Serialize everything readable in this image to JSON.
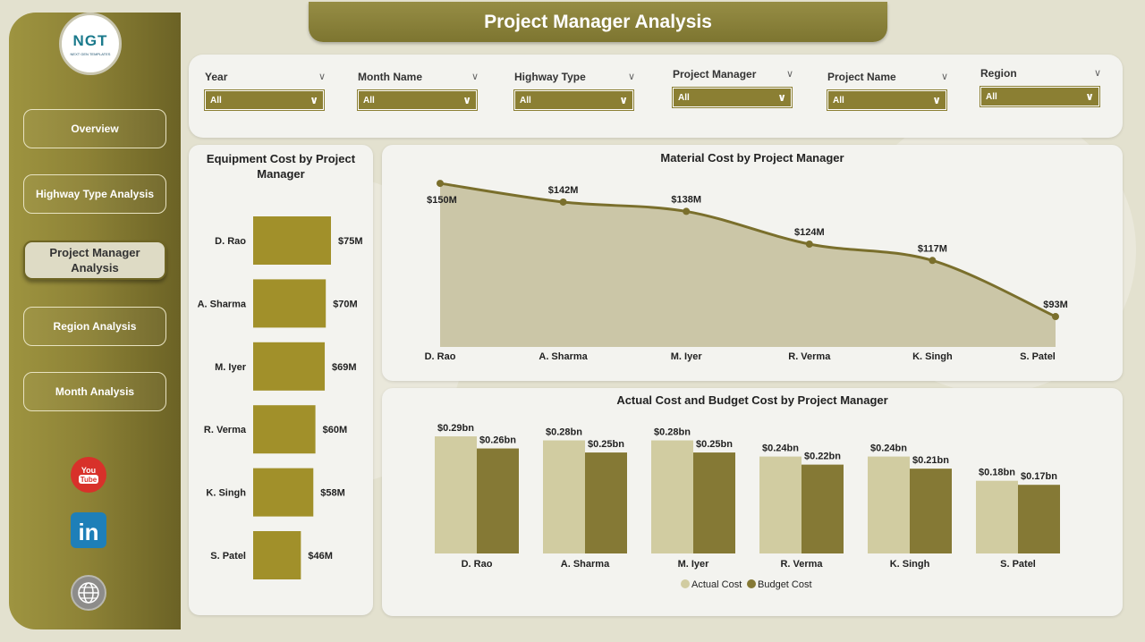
{
  "header": {
    "title": "Project Manager Analysis"
  },
  "logo": {
    "text": "NGT",
    "subtext": "NEXT GEN TEMPLATES"
  },
  "sidebar": {
    "items": [
      {
        "label": "Overview",
        "active": false
      },
      {
        "label": "Highway Type Analysis",
        "active": false
      },
      {
        "label": "Project Manager Analysis",
        "active": true
      },
      {
        "label": "Region Analysis",
        "active": false
      },
      {
        "label": "Month Analysis",
        "active": false
      }
    ],
    "social": [
      {
        "icon": "youtube-icon",
        "label": "You Tube"
      },
      {
        "icon": "linkedin-icon",
        "label": "in"
      },
      {
        "icon": "globe-icon"
      }
    ]
  },
  "filters": [
    {
      "label": "Year",
      "value": "All"
    },
    {
      "label": "Month Name",
      "value": "All"
    },
    {
      "label": "Highway Type",
      "value": "All"
    },
    {
      "label": "Project Manager",
      "value": "All"
    },
    {
      "label": "Project Name",
      "value": "All"
    },
    {
      "label": "Region",
      "value": "All"
    }
  ],
  "colors": {
    "olive": "#8b7f33",
    "bar_gold": "#a1902a",
    "area_fill": "#cbc6a7",
    "line": "#7a6f2c",
    "actual": "#d1cca1",
    "budget": "#857935"
  },
  "chart_data": [
    {
      "type": "bar",
      "orientation": "horizontal",
      "title": "Equipment Cost by Project Manager",
      "categories": [
        "D. Rao",
        "A. Sharma",
        "M. Iyer",
        "R. Verma",
        "K. Singh",
        "S. Patel"
      ],
      "values": [
        75,
        70,
        69,
        60,
        58,
        46
      ],
      "labels": [
        "$75M",
        "$70M",
        "$69M",
        "$60M",
        "$58M",
        "$46M"
      ],
      "unit": "$M"
    },
    {
      "type": "area",
      "title": "Material Cost by Project Manager",
      "categories": [
        "D. Rao",
        "A. Sharma",
        "M. Iyer",
        "R. Verma",
        "K. Singh",
        "S. Patel"
      ],
      "values": [
        150,
        142,
        138,
        124,
        117,
        93
      ],
      "labels": [
        "$150M",
        "$142M",
        "$138M",
        "$124M",
        "$117M",
        "$93M"
      ],
      "unit": "$M",
      "ylim": [
        80,
        155
      ]
    },
    {
      "type": "bar",
      "title": "Actual Cost and Budget Cost by Project Manager",
      "categories": [
        "D. Rao",
        "A. Sharma",
        "M. Iyer",
        "R. Verma",
        "K. Singh",
        "S. Patel"
      ],
      "series": [
        {
          "name": "Actual Cost",
          "values": [
            0.29,
            0.28,
            0.28,
            0.24,
            0.24,
            0.18
          ],
          "labels": [
            "$0.29bn",
            "$0.28bn",
            "$0.28bn",
            "$0.24bn",
            "$0.24bn",
            "$0.18bn"
          ]
        },
        {
          "name": "Budget Cost",
          "values": [
            0.26,
            0.25,
            0.25,
            0.22,
            0.21,
            0.17
          ],
          "labels": [
            "$0.26bn",
            "$0.25bn",
            "$0.25bn",
            "$0.22bn",
            "$0.21bn",
            "$0.17bn"
          ]
        }
      ],
      "unit": "$bn",
      "legend": "bottom-center"
    }
  ]
}
